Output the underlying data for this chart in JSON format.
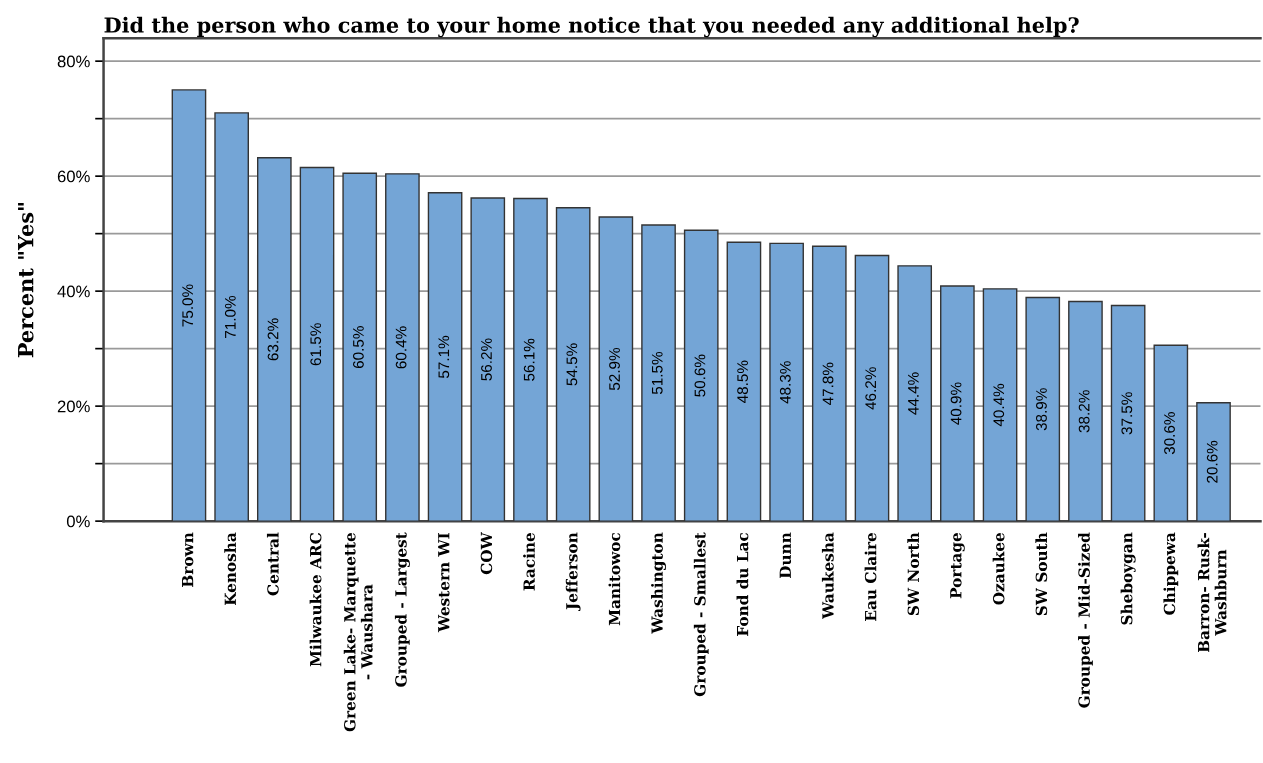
{
  "chart_data": {
    "type": "bar",
    "title": "Did the person who came to your home notice that you needed any additional help?",
    "ylabel": "Percent \"Yes\"",
    "categories": [
      "Brown",
      "Kenosha",
      "Central",
      "Milwaukee ARC",
      "Green Lake- Marquette\n- Waushara",
      "Grouped - Largest",
      "Western WI",
      "COW",
      "Racine",
      "Jefferson",
      "Manitowoc",
      "Washington",
      "Grouped - Smallest",
      "Fond du Lac",
      "Dunn",
      "Waukesha",
      "Eau Claire",
      "SW North",
      "Portage",
      "Ozaukee",
      "SW South",
      "Grouped - Mid-Sized",
      "Sheboygan",
      "Chippewa",
      "Barron- Rusk-\nWashburn"
    ],
    "values": [
      75.0,
      71.0,
      63.2,
      61.5,
      60.5,
      60.4,
      57.1,
      56.2,
      56.1,
      54.5,
      52.9,
      51.5,
      50.6,
      48.5,
      48.3,
      47.8,
      46.2,
      44.4,
      40.9,
      40.4,
      38.9,
      38.2,
      37.5,
      30.6,
      20.6
    ],
    "value_labels": [
      "75.0%",
      "71.0%",
      "63.2%",
      "61.5%",
      "60.5%",
      "60.4%",
      "57.1%",
      "56.2%",
      "56.1%",
      "54.5%",
      "52.9%",
      "51.5%",
      "50.6%",
      "48.5%",
      "48.3%",
      "47.8%",
      "46.2%",
      "44.4%",
      "40.9%",
      "40.4%",
      "38.9%",
      "38.2%",
      "37.5%",
      "30.6%",
      "20.6%"
    ],
    "color": "#74a5d6",
    "ylim": [
      0,
      84
    ],
    "yticks": [
      {
        "value": 0,
        "label": "0%"
      },
      {
        "value": 10,
        "label": null
      },
      {
        "value": 20,
        "label": "20%"
      },
      {
        "value": 30,
        "label": null
      },
      {
        "value": 40,
        "label": "40%"
      },
      {
        "value": 50,
        "label": null
      },
      {
        "value": 60,
        "label": "60%"
      },
      {
        "value": 70,
        "label": null
      },
      {
        "value": 80,
        "label": "80%"
      }
    ],
    "grid": "y"
  }
}
